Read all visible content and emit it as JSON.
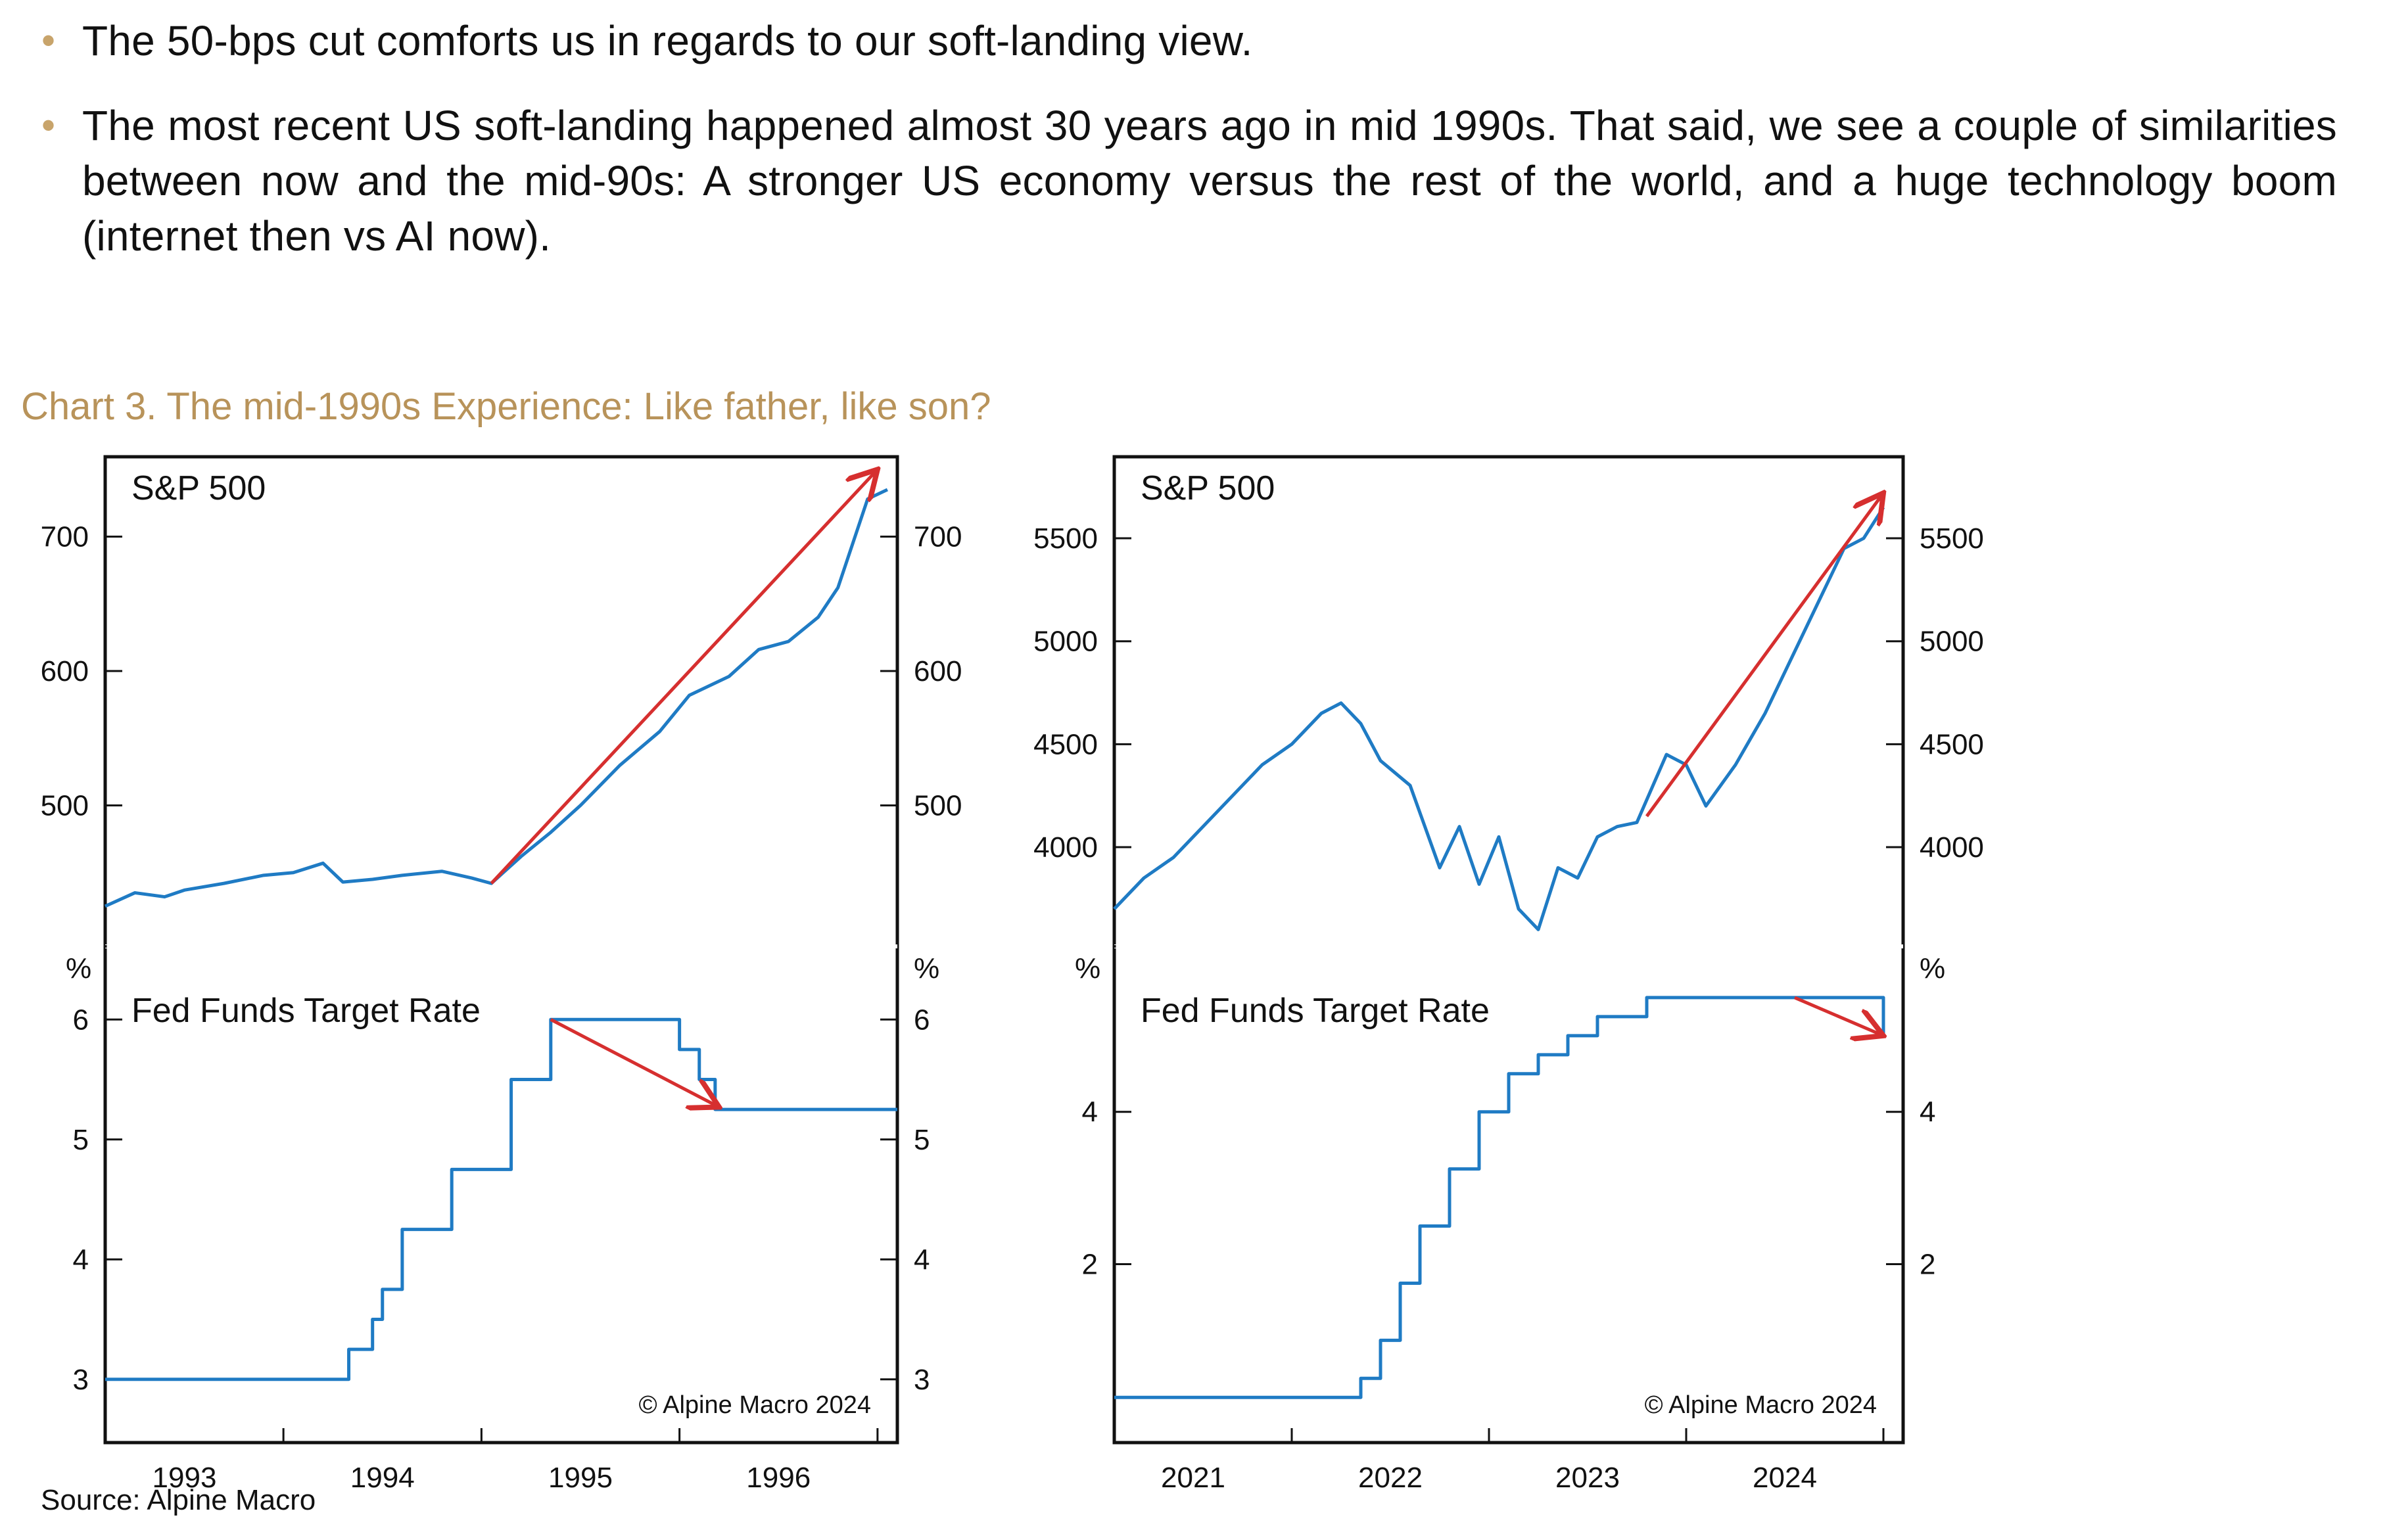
{
  "bullets": [
    "The 50-bps cut comforts us in regards to our soft-landing view.",
    "The most recent US soft-landing happened almost 30 years ago in mid 1990s. That said, we see a couple of similarities between now and the mid-90s: A stronger US economy versus the rest of the world, and a huge technology boom (internet then vs AI now)."
  ],
  "bullet_icon": "bullet-dot-icon",
  "chart_title": "Chart 3. The mid-1990s Experience: Like father, like son?",
  "source": "Source: Alpine Macro",
  "colors": {
    "series": "#1f7bc4",
    "arrow": "#d62f2f",
    "title": "#b8935a",
    "bullet": "#c8a46b"
  },
  "chart_data": [
    {
      "type": "line",
      "title": "S&P 500",
      "period": "1990s",
      "x_ticks": [
        "1993",
        "1994",
        "1995",
        "1996"
      ],
      "xlim": [
        1992.6,
        1996.6
      ],
      "ylim": [
        400,
        757
      ],
      "y_ticks": [
        500,
        600,
        700
      ],
      "y_tick_labels": [
        "500",
        "600",
        "700"
      ],
      "series": [
        {
          "name": "S&P 500",
          "x": [
            1992.6,
            1992.75,
            1992.9,
            1993.0,
            1993.2,
            1993.4,
            1993.55,
            1993.7,
            1993.8,
            1993.95,
            1994.1,
            1994.3,
            1994.45,
            1994.55,
            1994.7,
            1994.85,
            1995.0,
            1995.2,
            1995.4,
            1995.55,
            1995.75,
            1995.9,
            1996.05,
            1996.2,
            1996.3,
            1996.45,
            1996.55
          ],
          "values": [
            425,
            435,
            432,
            437,
            442,
            448,
            450,
            457,
            443,
            445,
            448,
            451,
            446,
            442,
            462,
            480,
            500,
            530,
            555,
            582,
            596,
            616,
            622,
            640,
            662,
            728,
            735
          ]
        }
      ],
      "arrow": {
        "from": [
          1994.55,
          442
        ],
        "to": [
          1996.5,
          750
        ]
      },
      "annotations": []
    },
    {
      "type": "line",
      "title": "Fed Funds Target Rate",
      "period": "1990s",
      "unit": "%",
      "x_ticks": [
        "1993",
        "1994",
        "1995",
        "1996"
      ],
      "xlim": [
        1992.6,
        1996.6
      ],
      "ylim": [
        2.5,
        6.5
      ],
      "y_ticks": [
        3,
        4,
        5,
        6
      ],
      "y_tick_labels": [
        "3",
        "4",
        "5",
        "6"
      ],
      "series": [
        {
          "name": "Fed Funds Target Rate",
          "step": true,
          "x": [
            1992.6,
            1993.7,
            1993.83,
            1993.95,
            1994.0,
            1994.1,
            1994.35,
            1994.65,
            1994.85,
            1995.05,
            1995.5,
            1995.6,
            1995.68,
            1996.6
          ],
          "values": [
            3.0,
            3.0,
            3.25,
            3.5,
            3.75,
            4.25,
            4.75,
            5.5,
            6.0,
            6.0,
            5.75,
            5.5,
            5.25,
            5.25
          ]
        }
      ],
      "arrow": {
        "from": [
          1994.85,
          6.0
        ],
        "to": [
          1995.7,
          5.27
        ]
      },
      "annotations": [
        "© Alpine Macro 2024"
      ]
    },
    {
      "type": "line",
      "title": "S&P 500",
      "period": "2020s",
      "x_ticks": [
        "2021",
        "2022",
        "2023",
        "2024"
      ],
      "xlim": [
        2020.6,
        2024.6
      ],
      "ylim": [
        3550,
        5880
      ],
      "y_ticks": [
        4000,
        4500,
        5000,
        5500
      ],
      "y_tick_labels": [
        "4000",
        "4500",
        "5000",
        "5500"
      ],
      "series": [
        {
          "name": "S&P 500",
          "x": [
            2020.6,
            2020.75,
            2020.9,
            2021.05,
            2021.2,
            2021.35,
            2021.5,
            2021.65,
            2021.75,
            2021.85,
            2021.95,
            2022.1,
            2022.25,
            2022.35,
            2022.45,
            2022.55,
            2022.65,
            2022.75,
            2022.85,
            2022.95,
            2023.05,
            2023.15,
            2023.25,
            2023.4,
            2023.5,
            2023.6,
            2023.75,
            2023.9,
            2024.05,
            2024.2,
            2024.3,
            2024.4,
            2024.5
          ],
          "values": [
            3700,
            3850,
            3950,
            4100,
            4250,
            4400,
            4500,
            4650,
            4700,
            4600,
            4420,
            4300,
            3900,
            4100,
            3820,
            4050,
            3700,
            3600,
            3900,
            3850,
            4050,
            4100,
            4120,
            4450,
            4400,
            4200,
            4400,
            4650,
            4950,
            5250,
            5450,
            5500,
            5650
          ]
        }
      ],
      "arrow": {
        "from": [
          2023.3,
          4150
        ],
        "to": [
          2024.5,
          5720
        ]
      },
      "annotations": []
    },
    {
      "type": "line",
      "title": "Fed Funds Target Rate",
      "period": "2020s",
      "unit": "%",
      "x_ticks": [
        "2021",
        "2022",
        "2023",
        "2024"
      ],
      "xlim": [
        2020.6,
        2024.6
      ],
      "ylim": [
        -0.3,
        6.0
      ],
      "y_ticks": [
        2,
        4
      ],
      "y_tick_labels": [
        "2",
        "4"
      ],
      "series": [
        {
          "name": "Fed Funds Target Rate",
          "step": true,
          "x": [
            2020.6,
            2021.8,
            2021.85,
            2021.95,
            2022.05,
            2022.15,
            2022.3,
            2022.45,
            2022.6,
            2022.75,
            2022.9,
            2023.05,
            2023.15,
            2023.3,
            2023.45,
            2023.6,
            2024.3,
            2024.45,
            2024.5
          ],
          "values": [
            0.25,
            0.25,
            0.5,
            1.0,
            1.75,
            2.5,
            3.25,
            4.0,
            4.5,
            4.75,
            5.0,
            5.25,
            5.25,
            5.5,
            5.5,
            5.5,
            5.5,
            5.5,
            5.0
          ]
        }
      ],
      "arrow": {
        "from": [
          2024.05,
          5.5
        ],
        "to": [
          2024.5,
          5.0
        ]
      },
      "annotations": [
        "© Alpine Macro 2024"
      ]
    }
  ]
}
